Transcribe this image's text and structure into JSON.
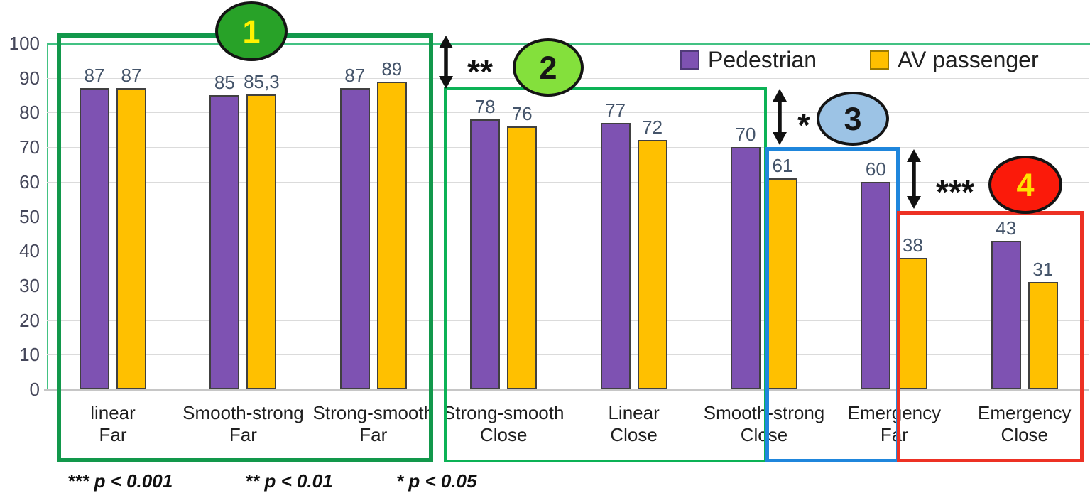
{
  "chart_data": {
    "type": "bar",
    "title": "",
    "xlabel": "",
    "ylabel": "",
    "ylim": [
      0,
      100
    ],
    "y_ticks": [
      0,
      10,
      20,
      30,
      40,
      50,
      60,
      70,
      80,
      90,
      100
    ],
    "grid": "horizontal",
    "legend_position": "top-right",
    "categories": [
      {
        "line1": "linear",
        "line2": "Far"
      },
      {
        "line1": "Smooth-strong",
        "line2": "Far"
      },
      {
        "line1": "Strong-smooth",
        "line2": "Far"
      },
      {
        "line1": "Strong-smooth",
        "line2": "Close"
      },
      {
        "line1": "Linear",
        "line2": "Close"
      },
      {
        "line1": "Smooth-strong",
        "line2": "Close"
      },
      {
        "line1": "Emergency",
        "line2": "Far"
      },
      {
        "line1": "Emergency",
        "line2": "Close"
      }
    ],
    "series": [
      {
        "name": "Pedestrian",
        "color": "#7E52B2",
        "border_color": "#404040",
        "values": [
          87,
          85,
          87,
          78,
          77,
          70,
          60,
          43
        ],
        "labels": [
          "87",
          "85",
          "87",
          "78",
          "77",
          "70",
          "60",
          "43"
        ]
      },
      {
        "name": "AV passenger",
        "color": "#FFC000",
        "border_color": "#404040",
        "values": [
          87,
          85.3,
          89,
          76,
          72,
          61,
          38,
          31
        ],
        "labels": [
          "87",
          "85,3",
          "89",
          "76",
          "72",
          "61",
          "38",
          "31"
        ]
      }
    ]
  },
  "legend": {
    "items": [
      {
        "label": "Pedestrian",
        "color": "#7E52B2",
        "border": "#4F3A78"
      },
      {
        "label": "AV passenger",
        "color": "#FFC000",
        "border": "#9C7A00"
      }
    ]
  },
  "annotations": {
    "groups": [
      {
        "number": "1",
        "circle_fill": "#28A228",
        "number_color": "#FFF200",
        "box_color": "#12984B"
      },
      {
        "number": "2",
        "circle_fill": "#84E03C",
        "number_color": "#161616",
        "box_color": "#0CB256"
      },
      {
        "number": "3",
        "circle_fill": "#9CC3E5",
        "number_color": "#161616",
        "box_color": "#1F86DC"
      },
      {
        "number": "4",
        "circle_fill": "#FB1A0A",
        "number_color": "#FFE000",
        "box_color": "#ED3124"
      }
    ],
    "significance_markers": [
      "**",
      "*",
      "***"
    ],
    "footnotes": [
      "*** p < 0.001",
      "** p < 0.01",
      "* p < 0.05"
    ]
  },
  "colors": {
    "plot_border_green": "#43C283",
    "gridline": "#DBDBDB",
    "arrow": "#111111"
  }
}
